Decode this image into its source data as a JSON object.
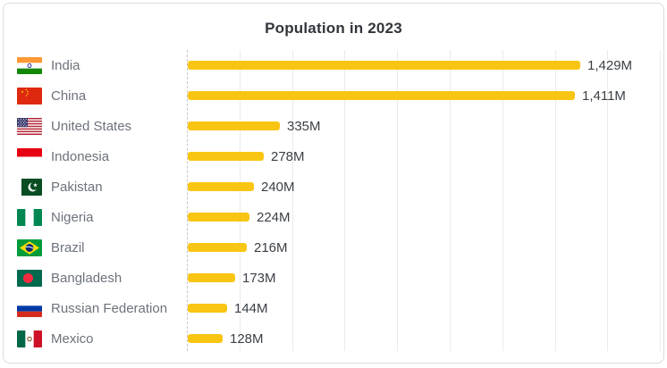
{
  "title": "Population in 2023",
  "colors": {
    "bar": "#F9C513",
    "title_text": "#32363c",
    "country_label_text": "#6c727c",
    "value_label_text": "#3b4046",
    "gridline": "#ebebeb",
    "axis_dashed_line": "#c6c6c6",
    "card_border": "#dcdcdc",
    "background": "#ffffff"
  },
  "chart_data": {
    "type": "bar",
    "orientation": "horizontal",
    "title": "Population in 2023",
    "xlabel": "",
    "ylabel": "",
    "unit": "M (millions of people)",
    "categories": [
      "India",
      "China",
      "United States",
      "Indonesia",
      "Pakistan",
      "Nigeria",
      "Brazil",
      "Bangladesh",
      "Russian Federation",
      "Mexico"
    ],
    "values": [
      1429,
      1411,
      335,
      278,
      240,
      224,
      216,
      173,
      144,
      128
    ],
    "value_labels": [
      "1,429M",
      "1,411M",
      "335M",
      "278M",
      "240M",
      "224M",
      "216M",
      "173M",
      "144M",
      "128M"
    ],
    "xlim": [
      0,
      1723
    ],
    "grid": "vertical gridlines on, first axis line dashed",
    "legend": "none",
    "bar_color": "#F9C513",
    "category_icons": [
      "flag-india-icon",
      "flag-china-icon",
      "flag-united-states-icon",
      "flag-indonesia-icon",
      "flag-pakistan-icon",
      "flag-nigeria-icon",
      "flag-brazil-icon",
      "flag-bangladesh-icon",
      "flag-russian-federation-icon",
      "flag-mexico-icon"
    ]
  },
  "rows": [
    {
      "country": "India",
      "slug": "india",
      "value": 1429,
      "value_label": "1,429M"
    },
    {
      "country": "China",
      "slug": "china",
      "value": 1411,
      "value_label": "1,411M"
    },
    {
      "country": "United States",
      "slug": "united-states",
      "value": 335,
      "value_label": "335M"
    },
    {
      "country": "Indonesia",
      "slug": "indonesia",
      "value": 278,
      "value_label": "278M"
    },
    {
      "country": "Pakistan",
      "slug": "pakistan",
      "value": 240,
      "value_label": "240M"
    },
    {
      "country": "Nigeria",
      "slug": "nigeria",
      "value": 224,
      "value_label": "224M"
    },
    {
      "country": "Brazil",
      "slug": "brazil",
      "value": 216,
      "value_label": "216M"
    },
    {
      "country": "Bangladesh",
      "slug": "bangladesh",
      "value": 173,
      "value_label": "173M"
    },
    {
      "country": "Russian Federation",
      "slug": "russian-federation",
      "value": 144,
      "value_label": "144M"
    },
    {
      "country": "Mexico",
      "slug": "mexico",
      "value": 128,
      "value_label": "128M"
    }
  ]
}
